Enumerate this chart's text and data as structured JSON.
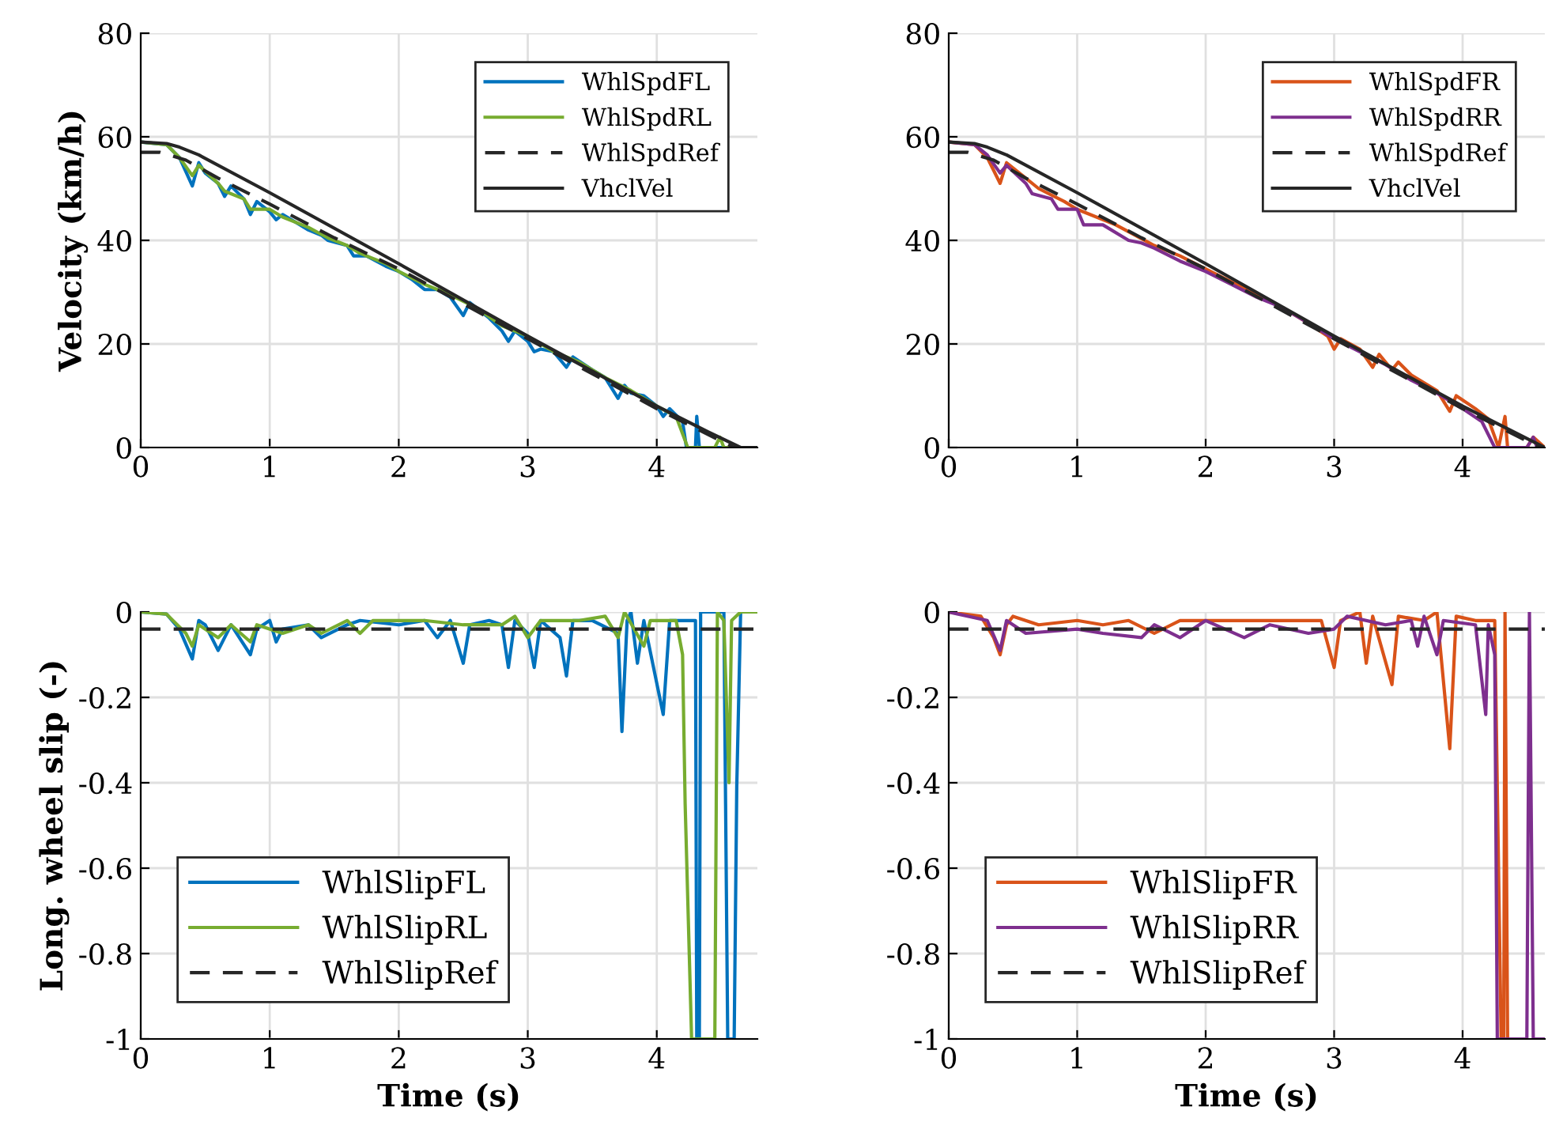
{
  "chart_data": [
    {
      "type": "line",
      "ylabel": "Velocity (km/h)",
      "xlim": [
        0,
        4.78
      ],
      "xticks": [
        0,
        1,
        2,
        3,
        4
      ],
      "ylim": [
        0,
        80
      ],
      "yticks": [
        0,
        20,
        40,
        60,
        80
      ],
      "grid": true,
      "legend": "top right",
      "series": [
        {
          "name": "WhlSpdFL",
          "color": "#0072bd",
          "line_style": "solid",
          "x": [
            0,
            0.2,
            0.3,
            0.4,
            0.45,
            0.5,
            0.6,
            0.65,
            0.7,
            0.8,
            0.85,
            0.9,
            1.0,
            1.05,
            1.1,
            1.2,
            1.3,
            1.4,
            1.45,
            1.6,
            1.65,
            1.75,
            1.9,
            2.0,
            2.1,
            2.2,
            2.3,
            2.4,
            2.5,
            2.55,
            2.7,
            2.8,
            2.85,
            2.9,
            3.0,
            3.05,
            3.1,
            3.2,
            3.3,
            3.35,
            3.5,
            3.6,
            3.7,
            3.75,
            3.8,
            3.9,
            4.0,
            4.05,
            4.1,
            4.2,
            4.23,
            4.3,
            4.31,
            4.33,
            4.65,
            4.78
          ],
          "values": [
            59,
            58.5,
            56,
            50.5,
            55,
            53,
            51,
            48.5,
            50.5,
            48,
            45,
            47.5,
            45.5,
            44,
            45,
            43.5,
            42,
            41,
            40,
            39,
            37,
            37,
            35,
            34,
            32.5,
            30.5,
            30.5,
            29,
            25.5,
            28,
            25,
            22.5,
            20.5,
            22.5,
            20.5,
            18.5,
            19,
            18.5,
            15.5,
            17.5,
            15,
            13.5,
            9.5,
            12,
            10.5,
            10,
            8,
            6,
            7.5,
            5,
            0,
            0,
            6,
            0,
            0,
            0
          ]
        },
        {
          "name": "WhlSpdRL",
          "color": "#77ac30",
          "line_style": "solid",
          "x": [
            0,
            0.2,
            0.3,
            0.4,
            0.45,
            0.6,
            0.65,
            0.8,
            0.85,
            1.0,
            1.1,
            1.3,
            1.45,
            1.6,
            1.7,
            1.9,
            2.0,
            2.2,
            2.4,
            2.6,
            2.8,
            2.9,
            3.0,
            3.2,
            3.4,
            3.6,
            3.8,
            4.0,
            4.15,
            4.24,
            4.45,
            4.49,
            4.52,
            4.78
          ],
          "values": [
            59,
            58.5,
            56,
            52.5,
            54.5,
            51,
            49.5,
            48,
            46,
            46,
            44.5,
            42.5,
            40.5,
            39,
            37.5,
            35.5,
            34,
            31.5,
            29.5,
            27,
            23.5,
            22.5,
            21.5,
            18.5,
            16.5,
            13.5,
            11,
            8,
            6,
            0,
            0,
            2,
            0,
            0
          ]
        },
        {
          "name": "WhlSpdRef",
          "color": "#262626",
          "line_style": "dashed",
          "x": [
            0,
            0.15,
            0.35,
            0.6,
            1.0,
            1.5,
            2.0,
            3.0,
            4.0,
            4.6,
            4.78
          ],
          "values": [
            57,
            57,
            55.5,
            52,
            47,
            40.5,
            34.5,
            21,
            7.5,
            0,
            0
          ]
        },
        {
          "name": "VhclVel",
          "color": "#262626",
          "line_style": "solid",
          "x": [
            0,
            0.2,
            0.3,
            0.45,
            1.0,
            2.0,
            3.0,
            4.0,
            4.4,
            4.65,
            4.78
          ],
          "values": [
            59,
            58.7,
            58,
            56.5,
            49.2,
            35.5,
            21.5,
            8,
            3,
            0,
            0
          ]
        }
      ]
    },
    {
      "type": "line",
      "xlim": [
        0,
        4.64
      ],
      "xticks": [
        0,
        1,
        2,
        3,
        4
      ],
      "ylim": [
        0,
        80
      ],
      "yticks": [
        0,
        20,
        40,
        60,
        80
      ],
      "grid": true,
      "legend": "top right",
      "series": [
        {
          "name": "WhlSpdFR",
          "color": "#d95319",
          "line_style": "solid",
          "x": [
            0,
            0.2,
            0.3,
            0.4,
            0.45,
            0.6,
            0.7,
            0.9,
            1.0,
            1.1,
            1.3,
            1.45,
            1.6,
            1.8,
            2.0,
            2.2,
            2.4,
            2.6,
            2.8,
            2.95,
            3.0,
            3.05,
            3.2,
            3.3,
            3.35,
            3.45,
            3.5,
            3.6,
            3.8,
            3.9,
            3.95,
            4.1,
            4.2,
            4.28,
            4.33,
            4.35,
            4.5,
            4.55,
            4.64
          ],
          "values": [
            59,
            58.5,
            56,
            51,
            55,
            52,
            50,
            47.5,
            46,
            45,
            43,
            41,
            39,
            37,
            34.5,
            32,
            29.5,
            27,
            24,
            21.5,
            19,
            21,
            19,
            15.5,
            18,
            15,
            16.5,
            14,
            11,
            7,
            10,
            7.5,
            5.5,
            0,
            6,
            0,
            0,
            2,
            0
          ]
        },
        {
          "name": "WhlSpdRR",
          "color": "#7e2f8e",
          "line_style": "solid",
          "x": [
            0,
            0.2,
            0.3,
            0.4,
            0.45,
            0.6,
            0.65,
            0.8,
            0.85,
            1.0,
            1.05,
            1.2,
            1.4,
            1.5,
            1.6,
            1.8,
            2.0,
            2.2,
            2.4,
            2.6,
            2.8,
            3.0,
            3.2,
            3.4,
            3.6,
            3.8,
            4.0,
            4.15,
            4.25,
            4.5,
            4.55,
            4.58,
            4.64
          ],
          "values": [
            59,
            58.5,
            56.5,
            53,
            54.5,
            51,
            49,
            48,
            46,
            46,
            43,
            43,
            40,
            39.5,
            38.5,
            36,
            34,
            31.5,
            29,
            27,
            24,
            21,
            18.5,
            16,
            13,
            10.5,
            7.5,
            5,
            0,
            0,
            2,
            0,
            0
          ]
        },
        {
          "name": "WhlSpdRef",
          "color": "#262626",
          "line_style": "dashed",
          "x": [
            0,
            0.15,
            0.35,
            0.6,
            1.0,
            1.5,
            2.0,
            3.0,
            4.0,
            4.6,
            4.64
          ],
          "values": [
            57,
            57,
            55.5,
            52,
            47,
            40.5,
            34.5,
            21,
            7.5,
            0,
            0
          ]
        },
        {
          "name": "VhclVel",
          "color": "#262626",
          "line_style": "solid",
          "x": [
            0,
            0.2,
            0.3,
            0.45,
            1.0,
            2.0,
            3.0,
            4.0,
            4.4,
            4.64
          ],
          "values": [
            59,
            58.7,
            58,
            56.5,
            49.2,
            35.5,
            21.5,
            8,
            3,
            0
          ]
        }
      ]
    },
    {
      "type": "line",
      "xlabel": "Time (s)",
      "ylabel": "Long. wheel slip (-)",
      "xlim": [
        0,
        4.78
      ],
      "xticks": [
        0,
        1,
        2,
        3,
        4
      ],
      "ylim": [
        -1,
        0
      ],
      "yticks": [
        {
          "value": -1,
          "label": "-1"
        },
        {
          "value": -0.8,
          "label": "-0.8"
        },
        {
          "value": -0.6,
          "label": "-0.6"
        },
        {
          "value": -0.4,
          "label": "-0.4"
        },
        {
          "value": -0.2,
          "label": "-0.2"
        },
        0
      ],
      "grid": true,
      "legend": "bottom left",
      "series": [
        {
          "name": "WhlSlipFL",
          "color": "#0072bd",
          "line_style": "solid",
          "x": [
            0,
            0.2,
            0.3,
            0.4,
            0.45,
            0.5,
            0.6,
            0.7,
            0.85,
            0.9,
            1.0,
            1.05,
            1.1,
            1.3,
            1.4,
            1.6,
            1.7,
            2.0,
            2.2,
            2.3,
            2.4,
            2.5,
            2.55,
            2.7,
            2.8,
            2.85,
            2.9,
            3.0,
            3.05,
            3.1,
            3.25,
            3.3,
            3.35,
            3.5,
            3.7,
            3.73,
            3.77,
            3.8,
            3.85,
            3.9,
            4.05,
            4.1,
            4.3,
            4.31,
            4.33,
            4.34,
            4.52,
            4.55,
            4.6,
            4.62,
            4.65,
            4.78
          ],
          "values": [
            0,
            -0.005,
            -0.04,
            -0.11,
            -0.02,
            -0.03,
            -0.09,
            -0.03,
            -0.1,
            -0.04,
            -0.02,
            -0.07,
            -0.04,
            -0.03,
            -0.06,
            -0.03,
            -0.02,
            -0.03,
            -0.02,
            -0.06,
            -0.02,
            -0.12,
            -0.03,
            -0.02,
            -0.03,
            -0.13,
            -0.02,
            -0.05,
            -0.13,
            -0.02,
            -0.06,
            -0.15,
            -0.02,
            -0.02,
            -0.05,
            -0.28,
            -0.02,
            0,
            -0.12,
            -0.02,
            -0.24,
            -0.02,
            -0.02,
            -1,
            -1,
            0,
            0,
            -1,
            -1,
            -0.41,
            0,
            0
          ]
        },
        {
          "name": "WhlSlipRL",
          "color": "#77ac30",
          "line_style": "solid",
          "x": [
            0,
            0.2,
            0.35,
            0.4,
            0.45,
            0.6,
            0.7,
            0.85,
            0.9,
            1.1,
            1.3,
            1.4,
            1.6,
            1.7,
            1.8,
            2.2,
            2.5,
            2.8,
            2.9,
            3.0,
            3.1,
            3.4,
            3.6,
            3.7,
            3.75,
            3.9,
            3.95,
            4.15,
            4.2,
            4.22,
            4.27,
            4.45,
            4.47,
            4.52,
            4.56,
            4.58,
            4.65,
            4.78
          ],
          "values": [
            0,
            -0.005,
            -0.05,
            -0.08,
            -0.03,
            -0.06,
            -0.03,
            -0.07,
            -0.03,
            -0.05,
            -0.03,
            -0.05,
            -0.02,
            -0.05,
            -0.02,
            -0.02,
            -0.03,
            -0.03,
            -0.01,
            -0.06,
            -0.02,
            -0.02,
            -0.01,
            -0.06,
            0,
            -0.08,
            -0.02,
            -0.02,
            -0.1,
            -0.45,
            -1,
            -1,
            0,
            -0.02,
            -0.4,
            -0.02,
            0,
            0
          ]
        },
        {
          "name": "WhlSlipRef",
          "color": "#262626",
          "line_style": "dashed",
          "x": [
            0,
            4.78
          ],
          "values": [
            -0.04,
            -0.04
          ]
        }
      ]
    },
    {
      "type": "line",
      "xlabel": "Time (s)",
      "xlim": [
        0,
        4.64
      ],
      "xticks": [
        0,
        1,
        2,
        3,
        4
      ],
      "ylim": [
        -1,
        0
      ],
      "yticks": [
        {
          "value": -1,
          "label": "-1"
        },
        {
          "value": -0.8,
          "label": "-0.8"
        },
        {
          "value": -0.6,
          "label": "-0.6"
        },
        {
          "value": -0.4,
          "label": "-0.4"
        },
        {
          "value": -0.2,
          "label": "-0.2"
        },
        0
      ],
      "grid": true,
      "legend": "bottom left",
      "series": [
        {
          "name": "WhlSlipFR",
          "color": "#d95319",
          "line_style": "solid",
          "x": [
            0,
            0.25,
            0.35,
            0.4,
            0.45,
            0.5,
            0.7,
            1.0,
            1.2,
            1.4,
            1.6,
            1.8,
            2.2,
            2.5,
            2.9,
            3.0,
            3.05,
            3.2,
            3.25,
            3.3,
            3.45,
            3.5,
            3.7,
            3.8,
            3.9,
            3.95,
            4.1,
            4.25,
            4.3,
            4.32,
            4.33,
            4.35
          ],
          "values": [
            0,
            -0.01,
            -0.06,
            -0.1,
            -0.03,
            -0.01,
            -0.03,
            -0.02,
            -0.03,
            -0.02,
            -0.05,
            -0.02,
            -0.02,
            -0.02,
            -0.02,
            -0.13,
            -0.02,
            0,
            -0.12,
            -0.01,
            -0.17,
            -0.01,
            -0.02,
            0,
            -0.32,
            -0.01,
            -0.02,
            -0.02,
            -1,
            -1,
            0,
            -1
          ]
        },
        {
          "name": "WhlSlipRR",
          "color": "#7e2f8e",
          "line_style": "solid",
          "x": [
            0,
            0.3,
            0.4,
            0.45,
            0.6,
            1.0,
            1.2,
            1.5,
            1.6,
            1.8,
            2.0,
            2.3,
            2.5,
            2.8,
            3.0,
            3.1,
            3.4,
            3.6,
            3.65,
            3.7,
            3.8,
            3.85,
            4.1,
            4.18,
            4.2,
            4.25,
            4.27,
            4.5,
            4.52,
            4.55,
            4.64
          ],
          "values": [
            0,
            -0.02,
            -0.09,
            -0.02,
            -0.05,
            -0.04,
            -0.05,
            -0.06,
            -0.03,
            -0.06,
            -0.02,
            -0.06,
            -0.03,
            -0.05,
            -0.04,
            -0.01,
            -0.03,
            -0.02,
            -0.08,
            -0.01,
            -0.1,
            -0.02,
            -0.03,
            -0.24,
            -0.03,
            -0.1,
            -1,
            -1,
            0,
            -1,
            -1
          ]
        },
        {
          "name": "WhlSlipRef",
          "color": "#262626",
          "line_style": "dashed",
          "x": [
            0,
            4.64
          ],
          "values": [
            -0.04,
            -0.04
          ]
        }
      ]
    }
  ]
}
